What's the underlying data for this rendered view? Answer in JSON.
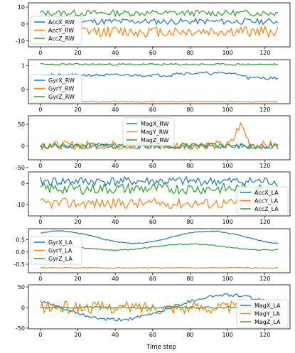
{
  "figure": {
    "xlabel": "Time step",
    "n_points": 128
  },
  "chart_data": [
    {
      "type": "line",
      "xticks": [
        0,
        20,
        40,
        60,
        80,
        100,
        120
      ],
      "xlim": [
        -6.4,
        133.4
      ],
      "ylim": [
        -13.5,
        12.5
      ],
      "yticks": [
        10,
        0,
        -10
      ],
      "legend": "upper-left",
      "series": [
        {
          "name": "AccX_RW",
          "color": "#1f77b4",
          "base": 1.5,
          "amp": 1.8,
          "seed": 11
        },
        {
          "name": "AccY_RW",
          "color": "#ff7f0e",
          "base": -4.5,
          "amp": 3.2,
          "seed": 12
        },
        {
          "name": "AccZ_RW",
          "color": "#2ca02c",
          "base": 6.5,
          "amp": 1.8,
          "seed": 13
        }
      ]
    },
    {
      "type": "line",
      "xticks": [
        0,
        20,
        40,
        60,
        80,
        100,
        120
      ],
      "xlim": [
        -6.4,
        133.4
      ],
      "ylim": [
        -0.6,
        1.25
      ],
      "yticks": [
        1,
        0
      ],
      "legend": "lower-left",
      "series": [
        {
          "name": "GyrX_RW",
          "color": "#1f77b4",
          "base": 0.6,
          "amp": 0.06,
          "seed": 21
        },
        {
          "name": "GyrY_RW",
          "color": "#ff7f0e",
          "base": -0.52,
          "amp": 0.015,
          "seed": 22
        },
        {
          "name": "GyrZ_RW",
          "color": "#2ca02c",
          "base": 1.05,
          "amp": 0.04,
          "seed": 23
        }
      ]
    },
    {
      "type": "line",
      "xticks": [
        0,
        20,
        40,
        60,
        80,
        100,
        120
      ],
      "xlim": [
        -6.4,
        133.4
      ],
      "ylim": [
        -32,
        70
      ],
      "yticks": [
        50,
        0,
        -50
      ],
      "legend": "upper-center",
      "series": [
        {
          "name": "MagX_RW",
          "color": "#1f77b4",
          "base": 0,
          "amp": 6,
          "seed": 31
        },
        {
          "name": "MagY_RW",
          "color": "#ff7f0e",
          "base": 2,
          "amp": 10,
          "seed": 32
        },
        {
          "name": "MagZ_RW",
          "color": "#2ca02c",
          "base": 0,
          "amp": 7,
          "seed": 33
        }
      ]
    },
    {
      "type": "line",
      "xticks": [
        0,
        20,
        40,
        60,
        80,
        100,
        120
      ],
      "xlim": [
        -6.4,
        133.4
      ],
      "ylim": [
        -15.5,
        5.5
      ],
      "yticks": [
        0,
        -10
      ],
      "legend": "lower-right",
      "series": [
        {
          "name": "AccX_LA",
          "color": "#1f77b4",
          "base": 1,
          "amp": 2.2,
          "seed": 41
        },
        {
          "name": "AccY_LA",
          "color": "#ff7f0e",
          "base": -9.5,
          "amp": 2.5,
          "seed": 42
        },
        {
          "name": "AccZ_LA",
          "color": "#2ca02c",
          "base": -2.5,
          "amp": 2.6,
          "seed": 43
        }
      ]
    },
    {
      "type": "line",
      "xticks": [
        0,
        20,
        40,
        60,
        80,
        100,
        120
      ],
      "xlim": [
        -6.4,
        133.4
      ],
      "ylim": [
        -0.85,
        0.95
      ],
      "yticks": [
        0.5,
        0.0,
        -0.5
      ],
      "legend": "left",
      "series": [
        {
          "name": "GyrX_LA",
          "color": "#1f77b4",
          "base": 0.6,
          "amp": 0.02,
          "seed": 51
        },
        {
          "name": "GyrY_LA",
          "color": "#ff7f0e",
          "base": -0.65,
          "amp": 0.02,
          "seed": 52
        },
        {
          "name": "GyrZ_LA",
          "color": "#2ca02c",
          "base": 0.2,
          "amp": 0.02,
          "seed": 53
        }
      ]
    },
    {
      "type": "line",
      "xticks": [
        0,
        20,
        40,
        60,
        80,
        100,
        120
      ],
      "xlim": [
        -6.4,
        133.4
      ],
      "ylim": [
        -52,
        55
      ],
      "yticks": [
        50,
        0,
        -50
      ],
      "legend": "lower-right",
      "series": [
        {
          "name": "MagX_LA",
          "color": "#1f77b4",
          "base": 0,
          "amp": 4,
          "seed": 61
        },
        {
          "name": "MagY_LA",
          "color": "#ff7f0e",
          "base": 0,
          "amp": 15,
          "seed": 62
        },
        {
          "name": "MagZ_LA",
          "color": "#2ca02c",
          "base": 0,
          "amp": 2.5,
          "seed": 63
        }
      ]
    }
  ]
}
